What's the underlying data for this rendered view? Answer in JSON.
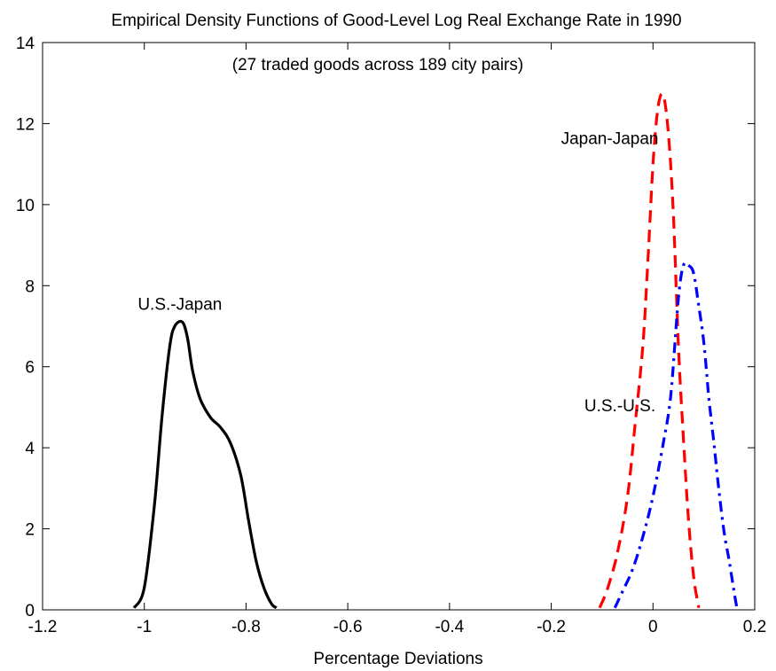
{
  "chart_data": {
    "type": "line",
    "title": "Empirical Density Functions of Good-Level Log Real Exchange Rate in 1990",
    "subtitle": "(27 traded goods across 189 city pairs)",
    "xlabel": "Percentage Deviations",
    "ylabel": "",
    "xlim": [
      -1.2,
      0.2
    ],
    "ylim": [
      0,
      14
    ],
    "xticks": [
      -1.2,
      -1,
      -0.8,
      -0.6,
      -0.4,
      -0.2,
      0,
      0.2
    ],
    "xtick_labels": [
      "-1.2",
      "-1",
      "-0.8",
      "-0.6",
      "-0.4",
      "-0.2",
      "0",
      "0.2"
    ],
    "yticks": [
      0,
      2,
      4,
      6,
      8,
      10,
      12,
      14
    ],
    "ytick_labels": [
      "0",
      "2",
      "4",
      "6",
      "8",
      "10",
      "12",
      "14"
    ],
    "grid": false,
    "annotations": [
      {
        "text": "U.S.-Japan",
        "x": -0.93,
        "y": 7.4
      },
      {
        "text": "Japan-Japan",
        "x": -0.085,
        "y": 11.5
      },
      {
        "text": "U.S.-U.S.",
        "x": -0.065,
        "y": 4.9
      }
    ],
    "series": [
      {
        "label": "U.S.-Japan",
        "color": "#000000",
        "style": "solid",
        "x": [
          -1.02,
          -1.0,
          -0.98,
          -0.965,
          -0.95,
          -0.94,
          -0.925,
          -0.915,
          -0.905,
          -0.89,
          -0.87,
          -0.85,
          -0.83,
          -0.81,
          -0.795,
          -0.78,
          -0.765,
          -0.75,
          -0.74
        ],
        "y": [
          0.05,
          0.55,
          2.6,
          4.8,
          6.5,
          7.0,
          7.1,
          6.7,
          5.9,
          5.2,
          4.75,
          4.5,
          4.1,
          3.3,
          2.2,
          1.2,
          0.55,
          0.15,
          0.05
        ]
      },
      {
        "label": "Japan-Japan",
        "color": "#ff0000",
        "style": "dashed",
        "x": [
          -0.105,
          -0.09,
          -0.07,
          -0.05,
          -0.035,
          -0.02,
          -0.01,
          0.0,
          0.01,
          0.02,
          0.03,
          0.04,
          0.05,
          0.06,
          0.07,
          0.08,
          0.09
        ],
        "y": [
          0.05,
          0.5,
          1.4,
          2.8,
          4.6,
          6.5,
          8.6,
          11.0,
          12.4,
          12.7,
          11.8,
          9.8,
          6.5,
          4.2,
          2.2,
          0.8,
          0.05
        ]
      },
      {
        "label": "U.S.-U.S.",
        "color": "#0000ff",
        "style": "dashdot",
        "x": [
          -0.075,
          -0.06,
          -0.04,
          -0.02,
          0.0,
          0.02,
          0.035,
          0.05,
          0.06,
          0.07,
          0.08,
          0.09,
          0.1,
          0.11,
          0.12,
          0.13,
          0.14,
          0.15,
          0.16,
          0.165
        ],
        "y": [
          0.05,
          0.45,
          1.0,
          1.8,
          2.8,
          4.1,
          5.3,
          7.7,
          8.5,
          8.5,
          8.3,
          7.5,
          6.6,
          5.2,
          4.1,
          2.9,
          1.9,
          1.2,
          0.4,
          0.05
        ]
      }
    ]
  }
}
